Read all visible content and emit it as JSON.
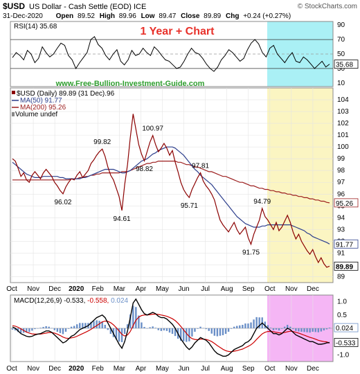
{
  "header": {
    "symbol": "$USD",
    "name": "US Dollar - Cash Settle (EOD)",
    "exchange": "ICE",
    "brand": "© StockCharts.com",
    "date": "31-Dec-2020",
    "open_label": "Open",
    "open": "89.52",
    "high_label": "High",
    "high": "89.96",
    "low_label": "Low",
    "low": "89.47",
    "close_label": "Close",
    "close": "89.89",
    "chg_label": "Chg",
    "chg": "+0.24 (+0.27%)"
  },
  "annotation": {
    "title": "1 Year + Chart",
    "website": "www.Free-Bullion-Investment-Guide.com"
  },
  "colors": {
    "price": "#8b0000",
    "ma50": "#2c3e8c",
    "ma200": "#9b1c1c",
    "rsi": "#000000",
    "macd": "#000000",
    "signal": "#cc0000",
    "hist": "#6a8fc7",
    "rsi_highlight": "#aaf0f5",
    "price_highlight": "#fbf5c2",
    "macd_highlight": "#f5b6f5",
    "title_red": "#e8312a",
    "website_green": "#2e9e2e"
  },
  "chart_data": [
    {
      "type": "line",
      "panel": "rsi",
      "legend": "RSI(14) 35.68",
      "last_value": "35.68",
      "ylim": [
        5,
        95
      ],
      "y_ticks": [
        10,
        30,
        50,
        70,
        90
      ],
      "levels": [
        30,
        50,
        70
      ],
      "values": [
        45,
        52,
        48,
        42,
        55,
        50,
        38,
        44,
        60,
        52,
        46,
        50,
        58,
        65,
        62,
        48,
        42,
        30,
        38,
        45,
        52,
        70,
        74,
        63,
        58,
        48,
        42,
        50,
        56,
        40,
        35,
        42,
        55,
        48,
        50,
        58,
        52,
        48,
        60,
        55,
        48,
        42,
        40,
        35,
        30,
        32,
        40,
        50,
        58,
        52,
        50,
        44,
        36,
        30,
        26,
        32,
        42,
        48,
        56,
        52,
        46,
        40,
        44,
        56,
        65,
        70,
        64,
        52,
        46,
        58,
        62,
        50,
        44,
        38,
        46,
        52,
        40,
        38,
        46,
        42,
        36,
        30,
        35,
        40,
        32,
        36
      ]
    },
    {
      "type": "line",
      "panel": "price",
      "legend": "$USD (Daily) 89.89 (31 Dec).96",
      "xlabel": "",
      "ylabel": "",
      "x_ticks": [
        "Oct",
        "Nov",
        "Dec",
        "2020",
        "Feb",
        "Mar",
        "Apr",
        "May",
        "Jun",
        "Jul",
        "Aug",
        "Sep",
        "Oct",
        "Nov",
        "Dec"
      ],
      "ylim": [
        88.5,
        105
      ],
      "y_ticks": [
        89,
        90,
        91,
        92,
        93,
        94,
        95,
        96,
        97,
        98,
        99,
        100,
        101,
        102,
        103,
        104
      ],
      "last_price": "89.89",
      "series": [
        {
          "name": "$USD (Daily) 89.89 (31 Dec)",
          "values": [
            99.0,
            98.8,
            98.2,
            97.5,
            97.8,
            97.2,
            97.0,
            97.6,
            97.9,
            97.6,
            97.3,
            97.8,
            98.1,
            97.8,
            97.5,
            97.0,
            96.7,
            96.3,
            96.02,
            96.6,
            97.0,
            97.3,
            97.2,
            97.6,
            97.9,
            97.4,
            97.7,
            98.0,
            98.6,
            98.9,
            99.3,
            99.6,
            99.82,
            99.2,
            98.3,
            97.6,
            97.2,
            96.5,
            95.8,
            94.61,
            96.8,
            98.5,
            100.8,
            102.8,
            101.5,
            100.2,
            99.4,
            98.82,
            99.6,
            100.4,
            100.97,
            100.2,
            99.6,
            99.9,
            100.3,
            99.9,
            99.3,
            99.7,
            98.7,
            97.9,
            97.0,
            96.4,
            96.0,
            95.71,
            96.4,
            96.9,
            97.4,
            97.81,
            97.1,
            96.7,
            96.4,
            96.0,
            95.5,
            94.6,
            93.8,
            93.4,
            93.1,
            92.8,
            93.2,
            93.6,
            93.0,
            92.6,
            92.9,
            93.2,
            92.3,
            91.75,
            92.6,
            93.2,
            93.8,
            94.79,
            94.1,
            93.8,
            93.4,
            93.0,
            93.6,
            92.9,
            93.2,
            93.7,
            94.2,
            93.6,
            92.8,
            92.2,
            92.6,
            92.0,
            91.6,
            91.2,
            90.9,
            91.3,
            90.7,
            90.2,
            90.6,
            90.1,
            89.8,
            89.89
          ]
        },
        {
          "name": "MA(50) 91.77",
          "last_value": "91.77",
          "values": [
            98.7,
            98.5,
            98.3,
            98.1,
            97.9,
            97.7,
            97.6,
            97.5,
            97.4,
            97.4,
            97.4,
            97.5,
            97.5,
            97.5,
            97.5,
            97.5,
            97.5,
            97.4,
            97.4,
            97.3,
            97.3,
            97.3,
            97.3,
            97.3,
            97.3,
            97.4,
            97.4,
            97.5,
            97.6,
            97.7,
            97.8,
            97.9,
            98.0,
            98.1,
            98.1,
            98.1,
            98.1,
            98.0,
            97.9,
            97.8,
            97.8,
            97.9,
            98.0,
            98.2,
            98.4,
            98.6,
            98.8,
            98.9,
            99.0,
            99.2,
            99.4,
            99.5,
            99.7,
            99.8,
            99.9,
            100.0,
            100.0,
            100.0,
            99.9,
            99.7,
            99.5,
            99.3,
            99.0,
            98.7,
            98.4,
            98.1,
            97.9,
            97.6,
            97.4,
            97.2,
            97.0,
            96.8,
            96.5,
            96.2,
            95.9,
            95.6,
            95.3,
            95.0,
            94.7,
            94.4,
            94.1,
            93.9,
            93.7,
            93.5,
            93.4,
            93.3,
            93.2,
            93.2,
            93.2,
            93.3,
            93.3,
            93.4,
            93.4,
            93.4,
            93.4,
            93.4,
            93.4,
            93.4,
            93.4,
            93.4,
            93.3,
            93.2,
            93.1,
            93.0,
            92.9,
            92.7,
            92.6,
            92.4,
            92.3,
            92.2,
            92.1,
            92.0,
            91.9,
            91.77
          ]
        },
        {
          "name": "MA(200) 95.26",
          "last_value": "95.26",
          "values": [
            97.2,
            97.2,
            97.2,
            97.2,
            97.2,
            97.2,
            97.2,
            97.2,
            97.2,
            97.2,
            97.2,
            97.2,
            97.2,
            97.2,
            97.2,
            97.2,
            97.2,
            97.2,
            97.2,
            97.2,
            97.2,
            97.3,
            97.3,
            97.3,
            97.4,
            97.4,
            97.5,
            97.5,
            97.6,
            97.6,
            97.7,
            97.7,
            97.8,
            97.8,
            97.8,
            97.8,
            97.8,
            97.8,
            97.8,
            97.9,
            97.9,
            97.9,
            98.0,
            98.1,
            98.2,
            98.3,
            98.4,
            98.5,
            98.6,
            98.6,
            98.7,
            98.7,
            98.8,
            98.8,
            98.8,
            98.8,
            98.8,
            98.8,
            98.8,
            98.7,
            98.7,
            98.6,
            98.5,
            98.5,
            98.4,
            98.3,
            98.3,
            98.2,
            98.1,
            98.0,
            97.9,
            97.9,
            97.8,
            97.7,
            97.6,
            97.5,
            97.5,
            97.4,
            97.3,
            97.2,
            97.1,
            97.0,
            97.0,
            96.9,
            96.8,
            96.7,
            96.7,
            96.6,
            96.5,
            96.5,
            96.4,
            96.4,
            96.3,
            96.3,
            96.2,
            96.2,
            96.1,
            96.1,
            96.0,
            96.0,
            95.9,
            95.9,
            95.8,
            95.8,
            95.7,
            95.7,
            95.6,
            95.6,
            95.5,
            95.5,
            95.4,
            95.4,
            95.3,
            95.26
          ]
        }
      ],
      "extra_legend": "Volume undef",
      "annotations": [
        {
          "label": "99.82",
          "index": 32
        },
        {
          "label": "96.02",
          "index": 18
        },
        {
          "label": "94.61",
          "index": 39
        },
        {
          "label": "100.97",
          "index": 50
        },
        {
          "label": "98.82",
          "index": 47
        },
        {
          "label": "97.81",
          "index": 67
        },
        {
          "label": "95.71",
          "index": 63
        },
        {
          "label": "94.79",
          "index": 89
        },
        {
          "label": "91.75",
          "index": 85
        }
      ]
    },
    {
      "type": "line",
      "panel": "macd",
      "legend_macd": "MACD(12,26,9) -0.533,",
      "legend_signal": "-0.558,",
      "legend_hist": "0.024",
      "ylim": [
        -1.25,
        1.25
      ],
      "y_ticks": [
        -1.0,
        -0.5,
        0.0,
        0.5,
        1.0
      ],
      "last_macd": "-0.533",
      "last_hist": "0.024",
      "series": [
        {
          "name": "MACD",
          "values": [
            0.05,
            0.0,
            -0.1,
            -0.2,
            -0.25,
            -0.3,
            -0.32,
            -0.3,
            -0.25,
            -0.22,
            -0.2,
            -0.15,
            -0.1,
            -0.1,
            -0.15,
            -0.25,
            -0.35,
            -0.45,
            -0.55,
            -0.5,
            -0.4,
            -0.3,
            -0.25,
            -0.15,
            -0.05,
            0.0,
            0.05,
            0.1,
            0.2,
            0.3,
            0.4,
            0.45,
            0.5,
            0.4,
            0.2,
            0.0,
            -0.2,
            -0.4,
            -0.6,
            -0.75,
            -0.5,
            -0.1,
            0.4,
            0.95,
            1.1,
            0.9,
            0.7,
            0.55,
            0.5,
            0.55,
            0.6,
            0.55,
            0.45,
            0.4,
            0.4,
            0.35,
            0.25,
            0.15,
            0.0,
            -0.2,
            -0.4,
            -0.55,
            -0.7,
            -0.8,
            -0.7,
            -0.55,
            -0.45,
            -0.35,
            -0.4,
            -0.45,
            -0.55,
            -0.7,
            -0.85,
            -0.95,
            -1.0,
            -1.05,
            -1.05,
            -1.0,
            -0.9,
            -0.8,
            -0.75,
            -0.7,
            -0.65,
            -0.55,
            -0.5,
            -0.4,
            -0.2,
            0.0,
            0.1,
            0.2,
            0.1,
            0.0,
            -0.1,
            -0.2,
            -0.2,
            -0.25,
            -0.2,
            -0.1,
            0.0,
            -0.05,
            -0.15,
            -0.25,
            -0.3,
            -0.35,
            -0.4,
            -0.45,
            -0.5,
            -0.5,
            -0.55,
            -0.6,
            -0.6,
            -0.58,
            -0.55,
            -0.533
          ]
        },
        {
          "name": "Signal",
          "values": [
            0.1,
            0.08,
            0.04,
            -0.02,
            -0.08,
            -0.14,
            -0.18,
            -0.21,
            -0.22,
            -0.22,
            -0.22,
            -0.2,
            -0.18,
            -0.16,
            -0.16,
            -0.18,
            -0.22,
            -0.27,
            -0.33,
            -0.37,
            -0.38,
            -0.36,
            -0.34,
            -0.3,
            -0.25,
            -0.2,
            -0.15,
            -0.1,
            -0.04,
            0.03,
            0.1,
            0.17,
            0.24,
            0.27,
            0.26,
            0.21,
            0.13,
            0.02,
            -0.1,
            -0.23,
            -0.29,
            -0.25,
            -0.12,
            0.1,
            0.3,
            0.42,
            0.48,
            0.5,
            0.5,
            0.51,
            0.53,
            0.53,
            0.52,
            0.5,
            0.48,
            0.45,
            0.41,
            0.36,
            0.29,
            0.19,
            0.07,
            -0.06,
            -0.19,
            -0.31,
            -0.39,
            -0.42,
            -0.43,
            -0.41,
            -0.41,
            -0.42,
            -0.45,
            -0.5,
            -0.57,
            -0.65,
            -0.72,
            -0.79,
            -0.84,
            -0.87,
            -0.88,
            -0.86,
            -0.84,
            -0.81,
            -0.78,
            -0.73,
            -0.68,
            -0.62,
            -0.53,
            -0.42,
            -0.31,
            -0.21,
            -0.15,
            -0.12,
            -0.12,
            -0.13,
            -0.15,
            -0.17,
            -0.18,
            -0.16,
            -0.13,
            -0.11,
            -0.12,
            -0.15,
            -0.18,
            -0.22,
            -0.26,
            -0.3,
            -0.34,
            -0.37,
            -0.41,
            -0.45,
            -0.48,
            -0.5,
            -0.51,
            -0.558
          ]
        }
      ]
    }
  ]
}
